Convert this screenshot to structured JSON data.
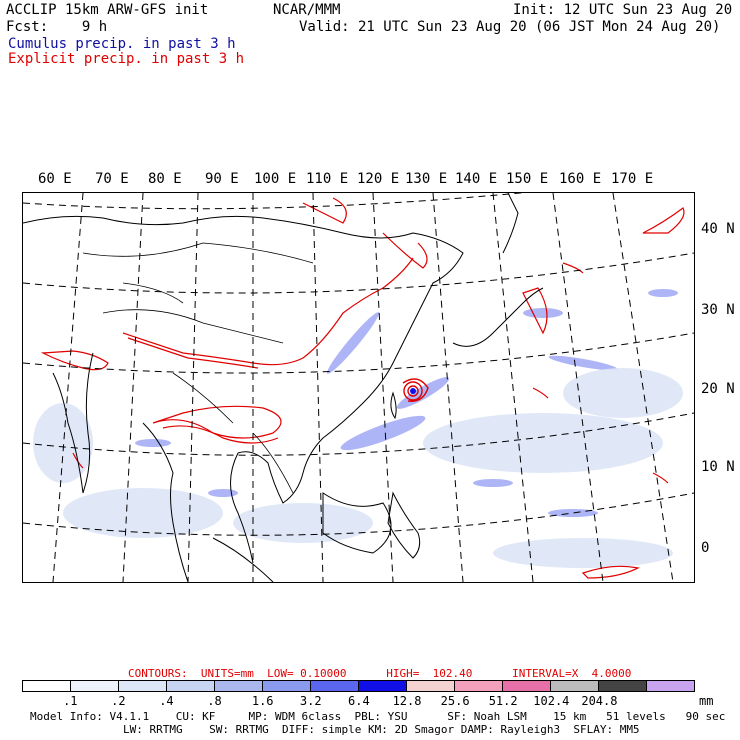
{
  "header": {
    "line1_left": "ACCLIP 15km ARW-GFS init",
    "line1_center": "NCAR/MMM",
    "line1_right": "Init: 12 UTC Sun 23 Aug 20",
    "line2_left": "Fcst:    9 h",
    "line2_right": "Valid: 21 UTC Sun 23 Aug 20 (06 JST Mon 24 Aug 20)",
    "legend_cumulus": "Cumulus precip. in past 3 h",
    "legend_explicit": "Explicit precip. in past 3 h"
  },
  "map": {
    "lon_labels": [
      "60 E",
      "70 E",
      "80 E",
      "90 E",
      "100 E",
      "110 E",
      "120 E",
      "130 E",
      "140 E",
      "150 E",
      "160 E",
      "170 E"
    ],
    "lat_labels": [
      "40 N",
      "30 N",
      "20 N",
      "10 N",
      "0"
    ]
  },
  "contours_line": {
    "label": "CONTOURS:  UNITS=mm  LOW= 0.10000      HIGH=  102.40      INTERVAL=X  4.0000"
  },
  "colorbar": {
    "colors": [
      "#ffffff",
      "#eef2fb",
      "#dde6f7",
      "#c7d4f2",
      "#aab8ee",
      "#8a9aee",
      "#5a66ee",
      "#1010e6",
      "#f5d2d2",
      "#f2a0bc",
      "#e870a8",
      "#bbbbbb",
      "#444444",
      "#c9a4ee"
    ],
    "labels": [
      ".1",
      ".2",
      ".4",
      ".8",
      "1.6",
      "3.2",
      "6.4",
      "12.8",
      "25.6",
      "51.2",
      "102.4",
      "204.8"
    ],
    "units": "mm"
  },
  "footer": {
    "line1": "Model Info: V4.1.1    CU: KF     MP: WDM 6class  PBL: YSU      SF: Noah LSM    15 km   51 levels   90 sec",
    "line2": "LW: RRTMG    SW: RRTMG  DIFF: simple KM: 2D Smagor DAMP: Rayleigh3  SFLAY: MM5"
  }
}
